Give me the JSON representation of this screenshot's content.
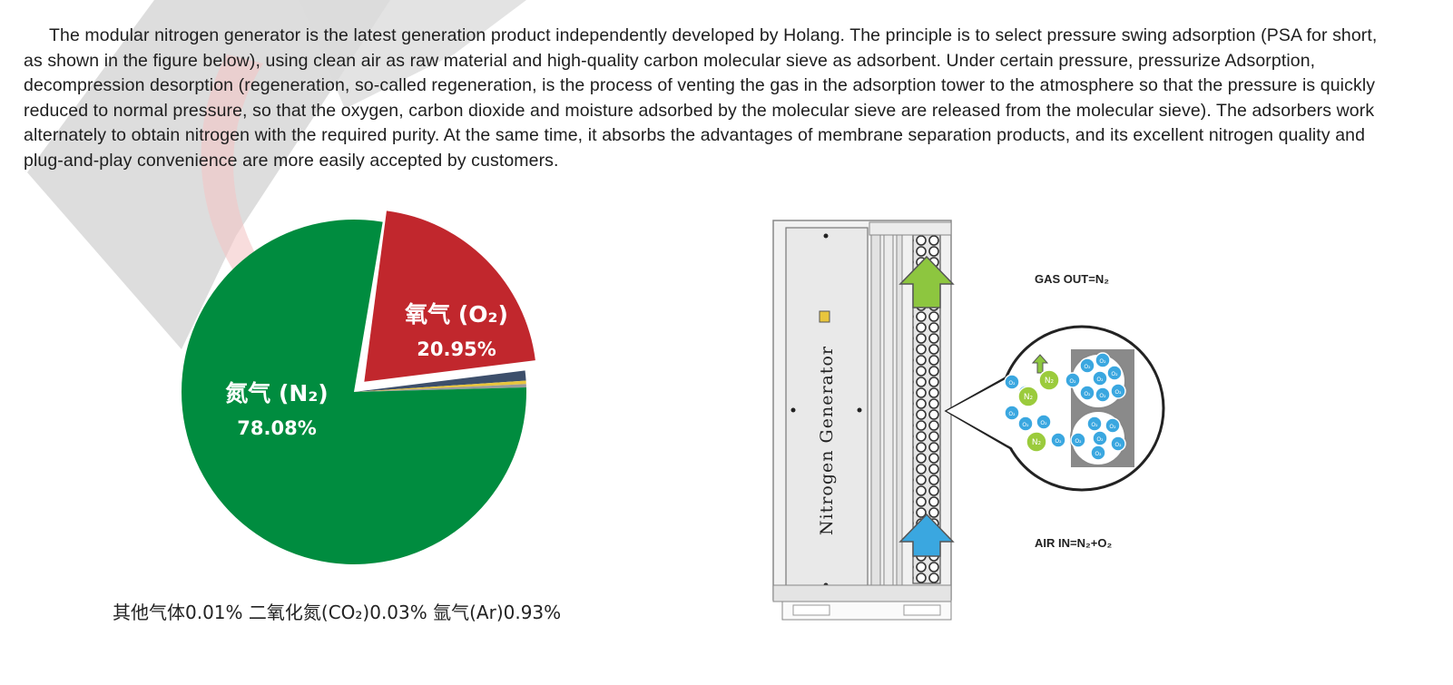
{
  "intro": {
    "paragraph": "The modular nitrogen generator is the latest generation product independently developed by Holang. The principle is to select pressure swing adsorption (PSA for short, as shown in the figure below), using clean air as raw material and high-quality carbon molecular sieve as adsorbent. Under certain pressure, pressurize Adsorption, decompression desorption (regeneration, so-called regeneration, is the process of venting the gas in the adsorption tower to the atmosphere so that the pressure is quickly reduced to normal pressure, so that the oxygen, carbon dioxide and moisture adsorbed by the molecular sieve are released from the molecular sieve). The adsorbers work alternately to obtain nitrogen with the required purity. At the same time, it absorbs the advantages of membrane separation products, and its excellent nitrogen quality and plug-and-play convenience are more easily accepted by customers."
  },
  "pie": {
    "n2_name": "氮气 (N₂)",
    "n2_value": "78.08%",
    "o2_name": "氧气 (O₂)",
    "o2_value": "20.95%",
    "legend": "其他气体0.01% 二氧化氮(CO₂)0.03% 氩气(Ar)0.93%",
    "colors": {
      "n2": "#008c3f",
      "o2": "#c1272d",
      "ar": "#3d4f6b",
      "co2": "#e8c53c",
      "other": "#9a9a9a"
    }
  },
  "diagram": {
    "device_label": "Nitrogen Generator",
    "gas_out": "GAS OUT=N₂",
    "air_in": "AIR IN=N₂+O₂",
    "molecule_n2": "N₂",
    "molecule_o2": "O₂"
  },
  "chart_data": {
    "type": "pie",
    "categories": [
      "氮气 (N₂)",
      "氧气 (O₂)",
      "氩气(Ar)",
      "二氧化氮(CO₂)",
      "其他气体"
    ],
    "values": [
      78.08,
      20.95,
      0.93,
      0.03,
      0.01
    ],
    "exploded": "氧气 (O₂)"
  }
}
